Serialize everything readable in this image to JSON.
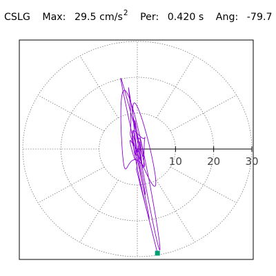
{
  "header": {
    "station": "CSLG",
    "max_label": "Max:",
    "max_value": "29.5 cm/s",
    "max_exponent": "2",
    "per_label": "Per:",
    "per_value": "0.420 s",
    "ang_label": "Ang:",
    "ang_value": "-79.7"
  },
  "chart_data": {
    "type": "polar-orbit",
    "radial_ticks": [
      10,
      20,
      30
    ],
    "radial_max": 30,
    "grid_rings": [
      10,
      20,
      30
    ],
    "grid_spokes_deg": [
      0,
      30,
      60,
      90,
      120,
      150,
      180,
      210,
      240,
      270,
      300,
      330
    ],
    "max_amplitude": 29.5,
    "max_angle_deg": -79.7,
    "colors": {
      "trace": "#8b00d6",
      "marker": "#009e73",
      "grid": "#777777",
      "axis": "#000000"
    }
  }
}
